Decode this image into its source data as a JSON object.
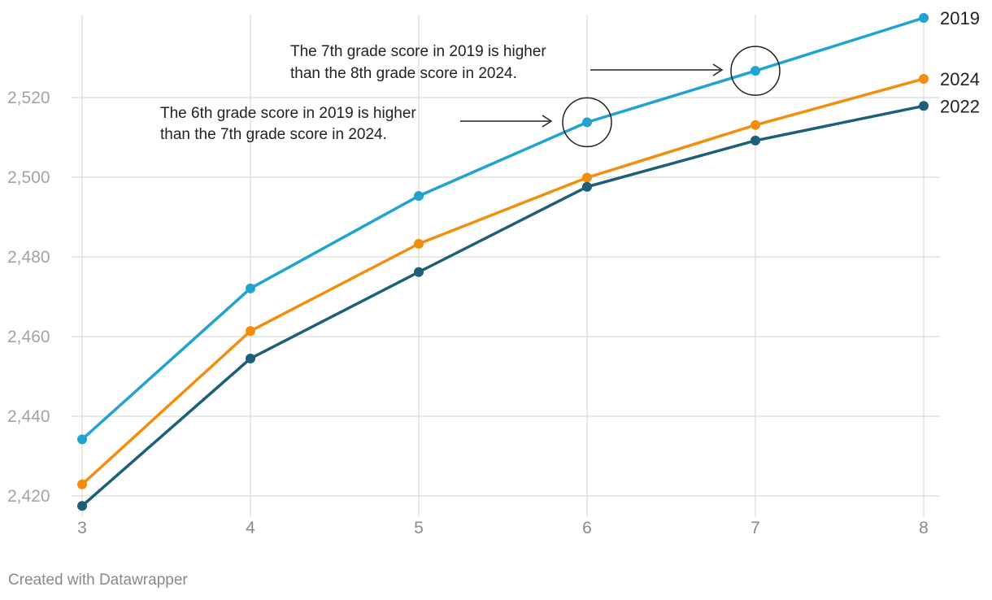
{
  "chart_data": {
    "type": "line",
    "x": [
      3,
      4,
      5,
      6,
      7,
      8
    ],
    "ylim": [
      2416,
      2540
    ],
    "yticks": [
      2420,
      2440,
      2460,
      2480,
      2500,
      2520
    ],
    "ytick_labels": [
      "2,420",
      "2,440",
      "2,460",
      "2,480",
      "2,500",
      "2,520"
    ],
    "xtick_labels": [
      "3",
      "4",
      "5",
      "6",
      "7",
      "8"
    ],
    "series": [
      {
        "name": "2019",
        "color": "#1fa3d0",
        "values": [
          2434.2,
          2472.1,
          2495.3,
          2513.8,
          2526.7,
          2540.0
        ]
      },
      {
        "name": "2024",
        "color": "#f28e0c",
        "values": [
          2422.9,
          2461.4,
          2483.3,
          2499.9,
          2513.1,
          2524.7
        ]
      },
      {
        "name": "2022",
        "color": "#1c5f78",
        "values": [
          2417.5,
          2454.5,
          2476.2,
          2497.6,
          2509.2,
          2517.9
        ]
      }
    ],
    "annotations": [
      {
        "id": "ann1",
        "text_lines": [
          "The 7th grade score in 2019 is higher",
          "than the 8th grade score in 2024."
        ],
        "x": 7,
        "y": 2526.7
      },
      {
        "id": "ann2",
        "text_lines": [
          "The 6th grade score in 2019 is higher",
          "than the 7th grade score in 2024."
        ],
        "x": 6,
        "y": 2513.8
      }
    ]
  },
  "credit": "Created with Datawrapper"
}
